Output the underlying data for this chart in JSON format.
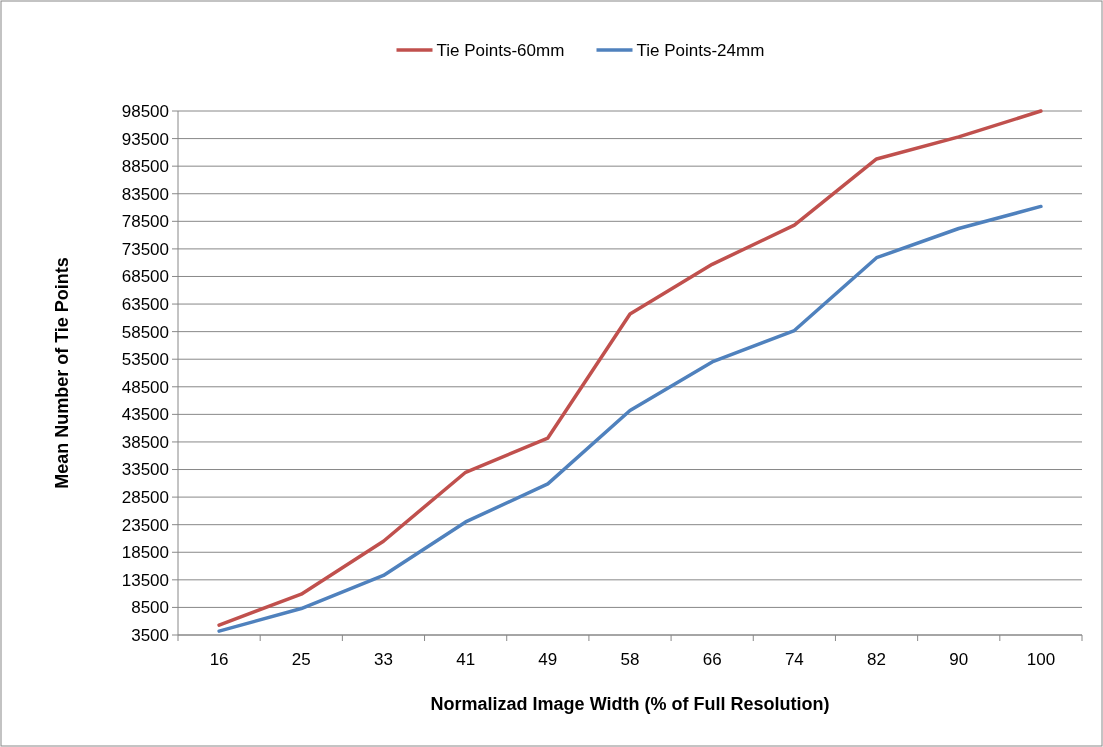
{
  "chart_data": {
    "type": "line",
    "xlabel": "Normalizad Image Width (% of Full Resolution)",
    "ylabel": "Mean Number of Tie Points",
    "categories": [
      "16",
      "25",
      "33",
      "41",
      "49",
      "58",
      "66",
      "74",
      "82",
      "90",
      "100"
    ],
    "series": [
      {
        "name": "Tie Points-60mm",
        "color": "#c0504d",
        "values": [
          5300,
          10900,
          20500,
          33000,
          39200,
          61700,
          70700,
          77800,
          89800,
          93800,
          98500
        ]
      },
      {
        "name": "Tie Points-24mm",
        "color": "#4f81bd",
        "values": [
          4200,
          8300,
          14300,
          24000,
          30900,
          44200,
          53000,
          58700,
          71900,
          77200,
          81200
        ]
      }
    ],
    "ylim": [
      3500,
      98500
    ],
    "yticks": [
      3500,
      8500,
      13500,
      18500,
      23500,
      28500,
      33500,
      38500,
      43500,
      48500,
      53500,
      58500,
      63500,
      68500,
      73500,
      78500,
      83500,
      88500,
      93500,
      98500
    ],
    "grid": "y",
    "legend": "top",
    "marker": "none",
    "line_style": "solid"
  }
}
